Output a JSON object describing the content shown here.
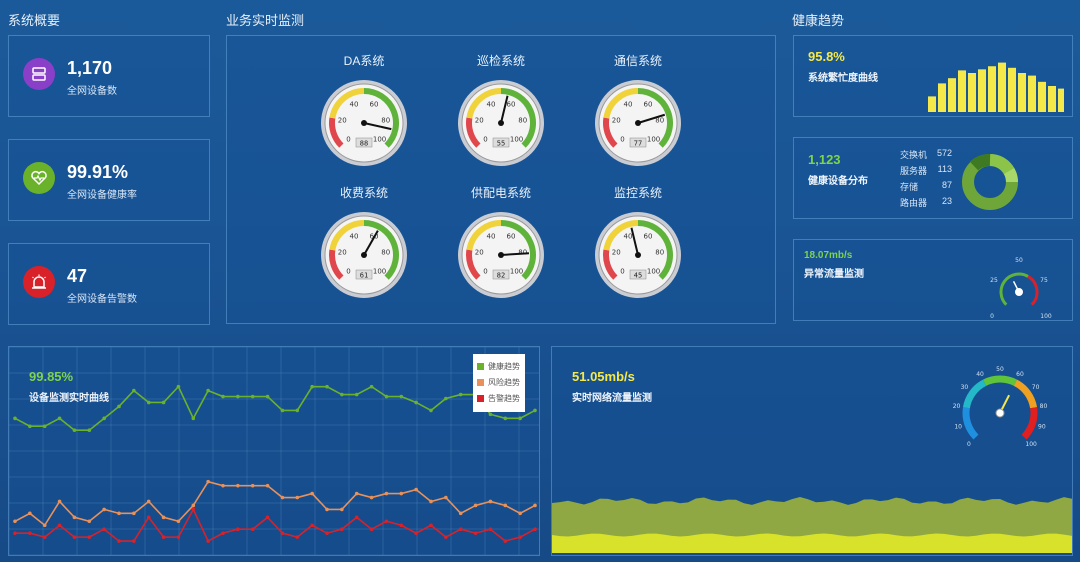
{
  "sections": {
    "overview": "系统概要",
    "monitor": "业务实时监测",
    "health": "健康趋势"
  },
  "stats": [
    {
      "value": "1,170",
      "label": "全网设备数",
      "color": "#8a3fc8",
      "icon": "server-icon"
    },
    {
      "value": "99.91%",
      "label": "全网设备健康率",
      "color": "#6ab22a",
      "icon": "heart-pulse-icon"
    },
    {
      "value": "47",
      "label": "全网设备告警数",
      "color": "#d9212a",
      "icon": "alarm-icon"
    }
  ],
  "gauges": [
    {
      "name": "DA系统",
      "value": 88,
      "ticks": [
        "20",
        "40",
        "60",
        "80",
        "100"
      ],
      "readout": "88"
    },
    {
      "name": "巡检系统",
      "value": 55,
      "ticks": [
        "20",
        "40",
        "60",
        "80",
        "100"
      ],
      "readout": "55"
    },
    {
      "name": "通信系统",
      "value": 77,
      "ticks": [
        "20",
        "40",
        "60",
        "80",
        "100"
      ],
      "readout": "77"
    },
    {
      "name": "收费系统",
      "value": 61,
      "ticks": [
        "20",
        "40",
        "60",
        "80",
        "100"
      ],
      "readout": "61"
    },
    {
      "name": "供配电系统",
      "value": 82,
      "ticks": [
        "20",
        "40",
        "60",
        "80",
        "100"
      ],
      "readout": "82"
    },
    {
      "name": "监控系统",
      "value": 45,
      "ticks": [
        "20",
        "40",
        "60",
        "80",
        "100"
      ],
      "readout": "45"
    }
  ],
  "health": {
    "busy": {
      "value": "95.8%",
      "label": "系统繁忙度曲线",
      "bars": [
        30,
        55,
        65,
        80,
        75,
        82,
        88,
        95,
        85,
        75,
        70,
        58,
        50,
        45
      ]
    },
    "dist": {
      "value": "1,123",
      "label": "健康设备分布",
      "items": [
        {
          "name": "交换机",
          "count": "572"
        },
        {
          "name": "服务器",
          "count": "113"
        },
        {
          "name": "存储",
          "count": "87"
        },
        {
          "name": "路由器",
          "count": "23"
        }
      ]
    },
    "traffic": {
      "value": "18.07mb/s",
      "label": "异常流量监测",
      "gauge_value": 40,
      "ticks": [
        "0",
        "25",
        "50",
        "75",
        "100"
      ]
    }
  },
  "trend": {
    "value": "99.85%",
    "label": "设备监测实时曲线",
    "legend": [
      {
        "name": "健康趋势",
        "color": "#6ab22a"
      },
      {
        "name": "风险趋势",
        "color": "#e8915a"
      },
      {
        "name": "告警趋势",
        "color": "#d9212a"
      }
    ],
    "chart_data": {
      "type": "line",
      "series": [
        {
          "name": "健康趋势",
          "values": [
            66,
            62,
            62,
            66,
            60,
            60,
            66,
            72,
            80,
            74,
            74,
            82,
            66,
            80,
            77,
            77,
            77,
            77,
            70,
            70,
            82,
            82,
            78,
            78,
            82,
            77,
            77,
            74,
            70,
            76,
            78,
            78,
            68,
            66,
            66,
            70
          ]
        },
        {
          "name": "风险趋势",
          "values": [
            14,
            18,
            12,
            24,
            16,
            14,
            20,
            18,
            18,
            24,
            16,
            14,
            22,
            34,
            32,
            32,
            32,
            32,
            26,
            26,
            28,
            20,
            20,
            28,
            26,
            28,
            28,
            30,
            24,
            26,
            18,
            22,
            24,
            22,
            18,
            22
          ]
        },
        {
          "name": "告警趋势",
          "values": [
            8,
            8,
            6,
            12,
            6,
            6,
            10,
            4,
            4,
            16,
            6,
            6,
            20,
            4,
            8,
            10,
            10,
            16,
            8,
            6,
            12,
            8,
            10,
            16,
            10,
            14,
            12,
            8,
            12,
            6,
            10,
            8,
            10,
            4,
            6,
            10
          ]
        }
      ]
    }
  },
  "network": {
    "value": "51.05mb/s",
    "label": "实时网络流量监测",
    "gauge_value": 60,
    "ticks": [
      "0",
      "10",
      "20",
      "30",
      "40",
      "50",
      "60",
      "70",
      "80",
      "90",
      "100"
    ]
  },
  "colors": {
    "accent_yellow": "#f5e94a",
    "accent_green": "#7fd44a",
    "panel_border": "#78b4e6"
  }
}
